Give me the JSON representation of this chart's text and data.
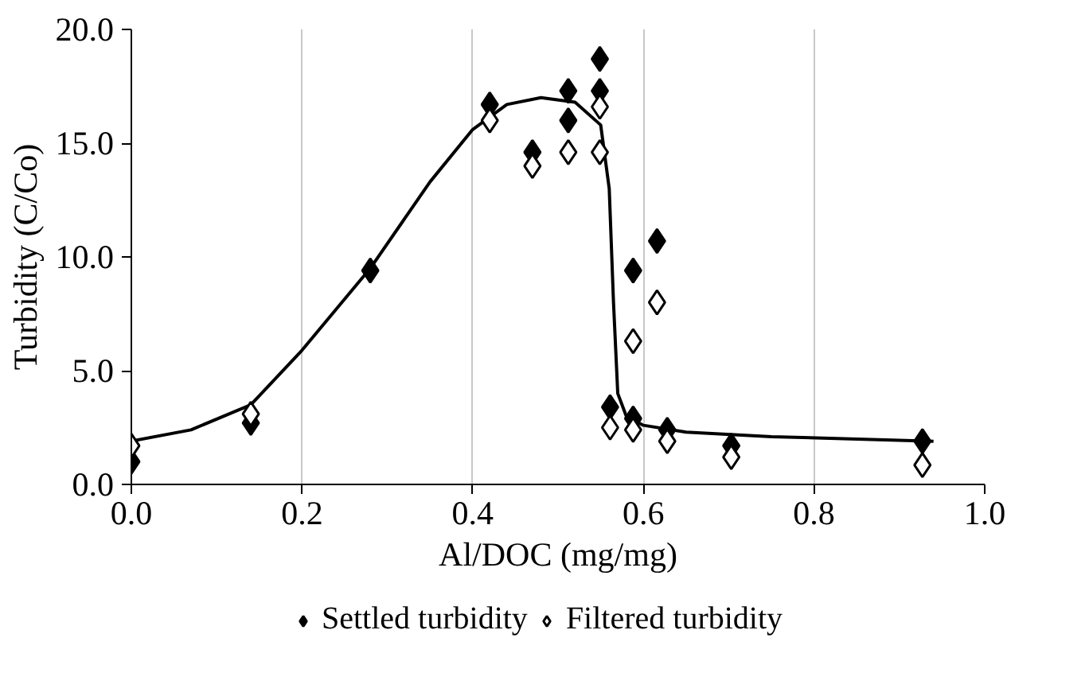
{
  "chart_data": {
    "type": "scatter",
    "xlabel": "Al/DOC (mg/mg)",
    "ylabel": "Turbidity (C/Co)",
    "xlim": [
      0,
      1
    ],
    "ylim": [
      0,
      20
    ],
    "xticks": [
      {
        "value": 0,
        "label": "0.0"
      },
      {
        "value": 0.2,
        "label": "0.2"
      },
      {
        "value": 0.4,
        "label": "0.4"
      },
      {
        "value": 0.6,
        "label": "0.6"
      },
      {
        "value": 0.8,
        "label": "0.8"
      },
      {
        "value": 1,
        "label": "1.0"
      }
    ],
    "yticks": [
      {
        "value": 0,
        "label": "0.0"
      },
      {
        "value": 5,
        "label": "5.0"
      },
      {
        "value": 10,
        "label": "10.0"
      },
      {
        "value": 15,
        "label": "15.0"
      },
      {
        "value": 20,
        "label": "20.0"
      }
    ],
    "grid": "x",
    "legend": "bottom",
    "marker": "diamond",
    "series": [
      {
        "type": "line",
        "color": "#000000",
        "marker": "none",
        "x": [
          0,
          0.07,
          0.14,
          0.2,
          0.28,
          0.35,
          0.4,
          0.44,
          0.48,
          0.52,
          0.55,
          0.56,
          0.565,
          0.57,
          0.58,
          0.6,
          0.65,
          0.75,
          0.94
        ],
        "values": [
          1.9,
          2.4,
          3.5,
          5.9,
          9.5,
          13.3,
          15.6,
          16.7,
          17.0,
          16.8,
          15.8,
          13,
          8,
          4,
          3.0,
          2.6,
          2.3,
          2.1,
          1.9
        ]
      },
      {
        "name": "Settled turbidity",
        "color": "#000000",
        "x": [
          0,
          0.14,
          0.28,
          0.42,
          0.47,
          0.512,
          0.512,
          0.549,
          0.549,
          0.561,
          0.588,
          0.588,
          0.616,
          0.628,
          0.703,
          0.927
        ],
        "values": [
          1.0,
          2.7,
          9.4,
          16.7,
          14.6,
          16.0,
          17.3,
          17.3,
          18.7,
          3.4,
          9.4,
          2.9,
          10.7,
          2.4,
          1.7,
          1.9
        ]
      },
      {
        "name": "Filtered turbidity",
        "color": "#ffffff",
        "x": [
          0,
          0.14,
          0.42,
          0.47,
          0.512,
          0.549,
          0.549,
          0.561,
          0.588,
          0.588,
          0.616,
          0.628,
          0.703,
          0.927
        ],
        "values": [
          1.7,
          3.1,
          16.0,
          14.0,
          14.6,
          14.6,
          16.6,
          2.5,
          2.4,
          6.3,
          8.0,
          1.9,
          1.2,
          0.85
        ]
      }
    ]
  }
}
